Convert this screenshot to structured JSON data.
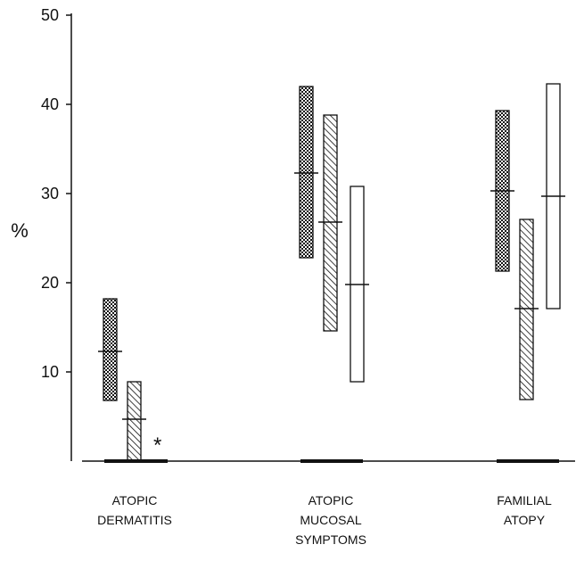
{
  "chart_data": {
    "type": "range-bar",
    "ylabel": "%",
    "ylim": [
      0,
      50
    ],
    "yticks": [
      "10",
      "20",
      "30",
      "40",
      "50"
    ],
    "categories": [
      {
        "lines": [
          "ATOPIC",
          "DERMATITIS"
        ]
      },
      {
        "lines": [
          "ATOPIC",
          "MUCOSAL",
          "SYMPTOMS"
        ]
      },
      {
        "lines": [
          "FAMILIAL",
          "ATOPY"
        ]
      }
    ],
    "series": [
      {
        "pattern": "dots",
        "low": [
          6.8,
          22.8,
          21.3
        ],
        "high": [
          18.2,
          42.0,
          39.3
        ],
        "mid": [
          12.3,
          32.3,
          30.3
        ]
      },
      {
        "pattern": "hatch",
        "low": [
          0.0,
          14.6,
          6.9
        ],
        "high": [
          8.9,
          38.8,
          27.1
        ],
        "mid": [
          4.7,
          26.8,
          17.1
        ]
      },
      {
        "pattern": "open",
        "low": [
          0.0,
          8.9,
          17.1
        ],
        "high": [
          0.0,
          30.8,
          42.3
        ],
        "mid": [
          0.0,
          19.8,
          29.7
        ]
      }
    ],
    "annotation": "*",
    "grid": false,
    "colors": {
      "ink": "#111111",
      "background": "#ffffff"
    }
  }
}
